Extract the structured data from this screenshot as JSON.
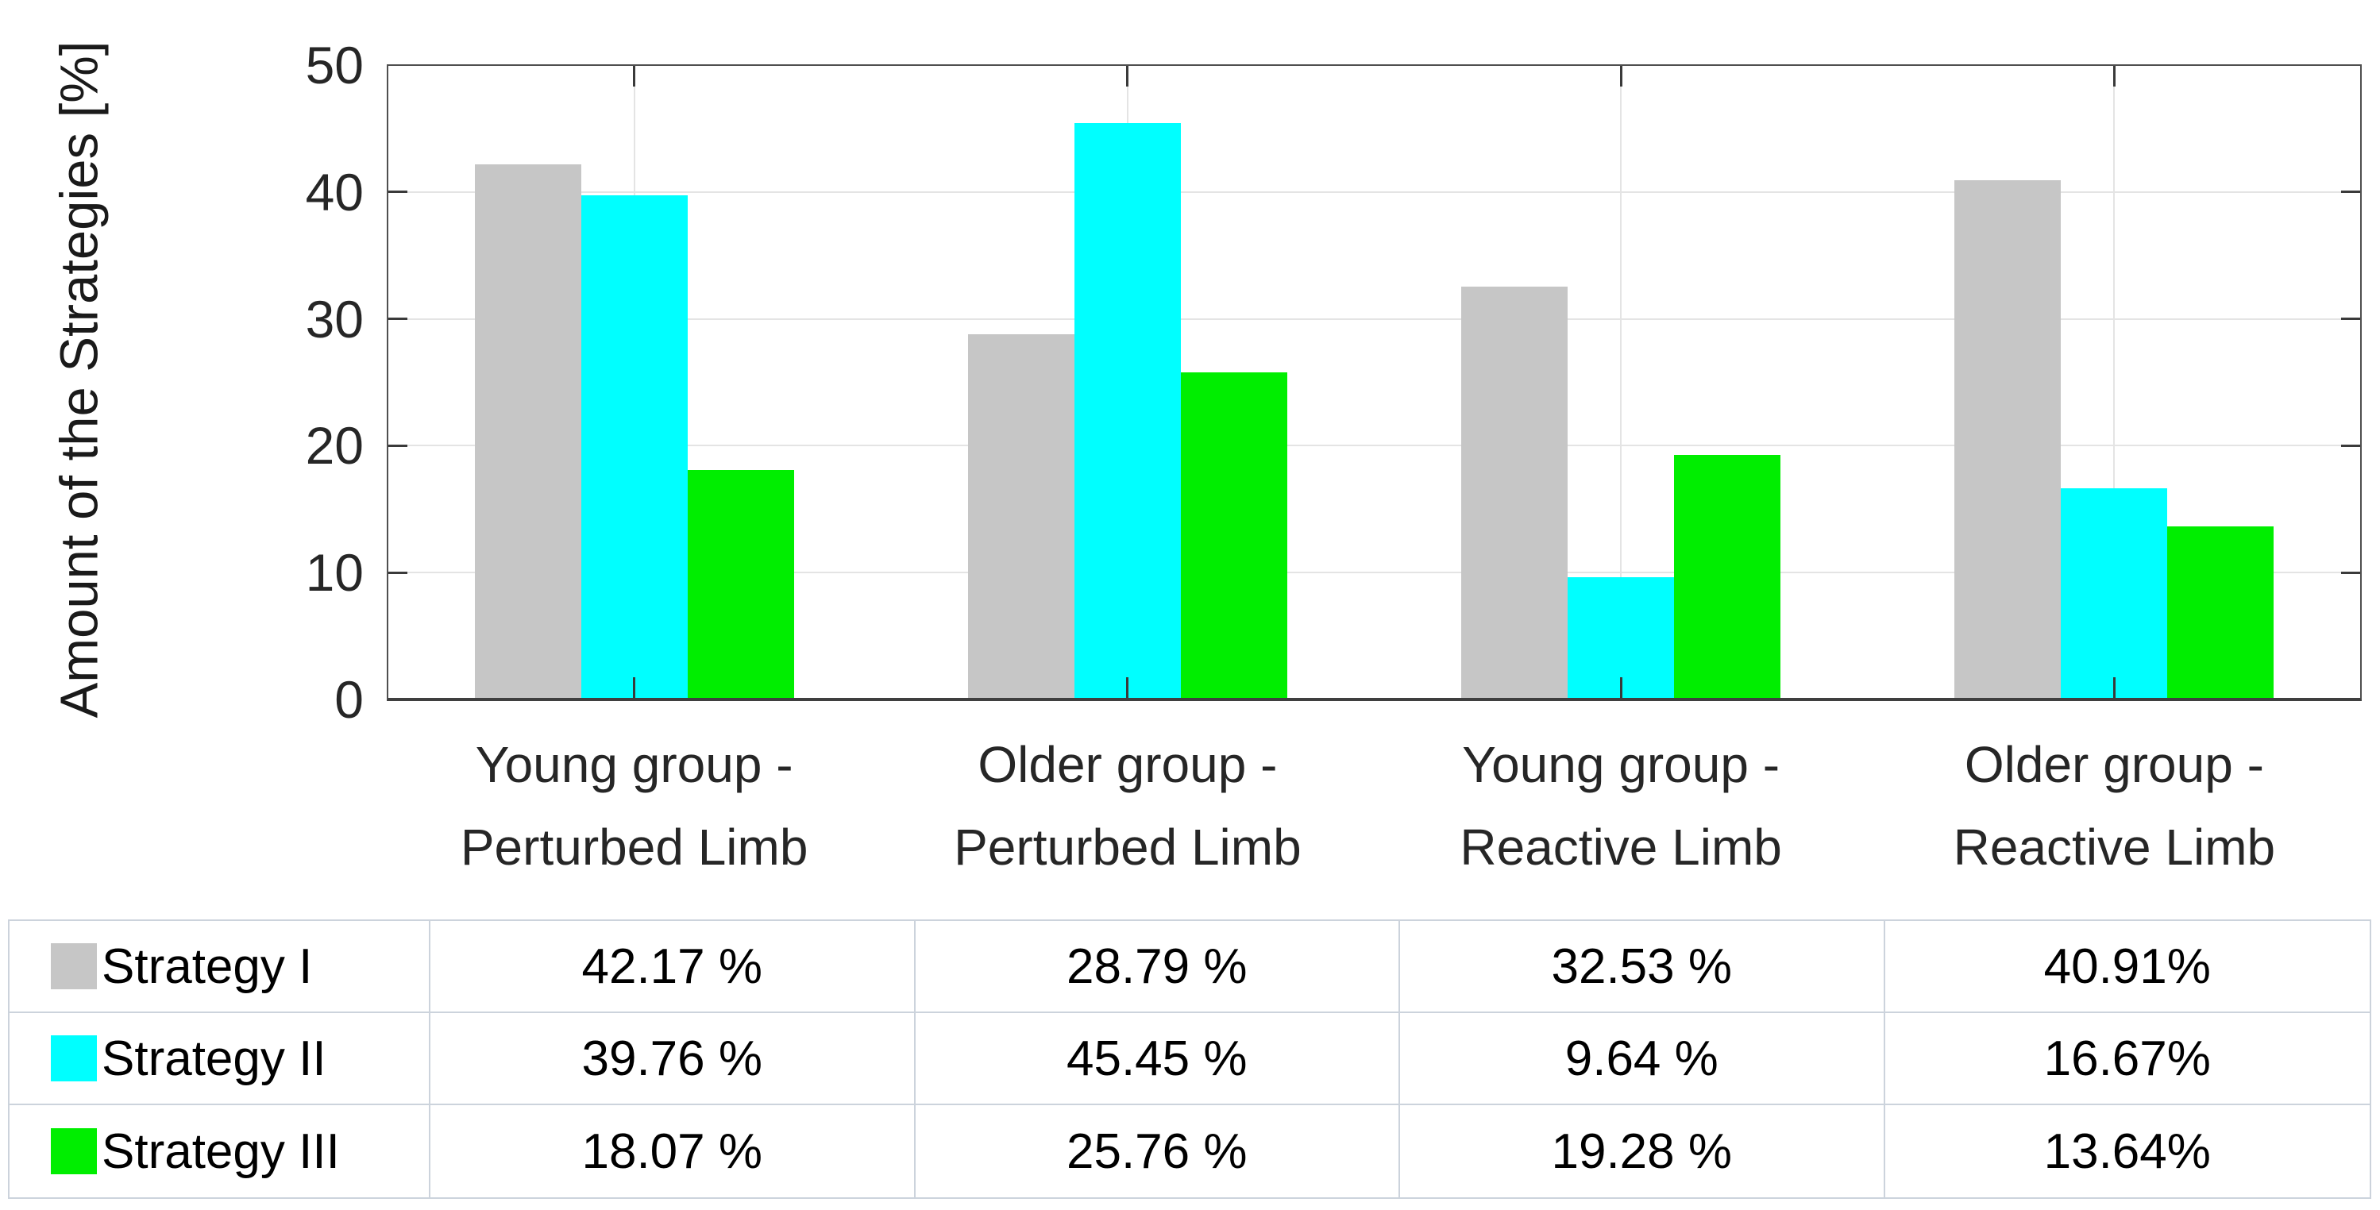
{
  "chart_data": {
    "type": "bar",
    "title": "",
    "ylabel": "Amount of the Strategies [%]",
    "xlabel": "",
    "ylim": [
      0,
      50
    ],
    "yticks": [
      0,
      10,
      20,
      30,
      40,
      50
    ],
    "grid": true,
    "legend_position": "table-below",
    "categories": [
      [
        "Young group -",
        "Perturbed Limb"
      ],
      [
        "Older group -",
        "Perturbed Limb"
      ],
      [
        "Young group -",
        "Reactive Limb"
      ],
      [
        "Older group -",
        "Reactive Limb"
      ]
    ],
    "series": [
      {
        "name": "Strategy I",
        "color": "#c6c6c6",
        "values": [
          42.17,
          28.79,
          32.53,
          40.91
        ]
      },
      {
        "name": "Strategy II",
        "color": "#00ffff",
        "values": [
          39.76,
          45.45,
          9.64,
          16.67
        ]
      },
      {
        "name": "Strategy III",
        "color": "#00ee00",
        "values": [
          18.07,
          25.76,
          19.28,
          13.64
        ]
      }
    ]
  },
  "table": {
    "rows": [
      {
        "label": "Strategy I",
        "swatch": "#c6c6c6",
        "values": [
          "42.17 %",
          "28.79 %",
          "32.53 %",
          "40.91%"
        ]
      },
      {
        "label": "Strategy II",
        "swatch": "#00ffff",
        "values": [
          "39.76 %",
          "45.45 %",
          "9.64 %",
          "16.67%"
        ]
      },
      {
        "label": "Strategy III",
        "swatch": "#00ee00",
        "values": [
          "18.07 %",
          "25.76 %",
          "19.28 %",
          "13.64%"
        ]
      }
    ]
  },
  "colors": {
    "axis": "#4f4f4f",
    "grid": "#e4e4e4",
    "tick_text": "#262626",
    "table_border": "#ccd3dc",
    "background": "#ffffff"
  }
}
